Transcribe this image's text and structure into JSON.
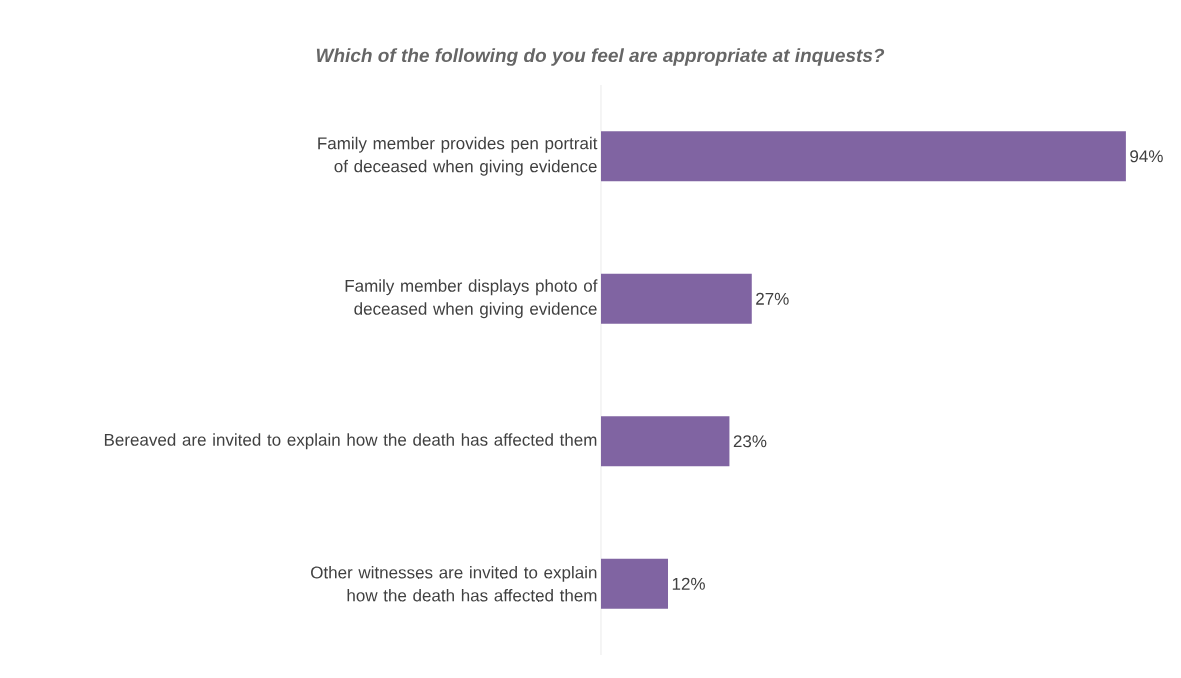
{
  "chart_data": {
    "type": "bar",
    "orientation": "horizontal",
    "title": "Which of the following do you feel are appropriate at inquests?",
    "categories": [
      "Family member provides pen portrait of deceased when giving evidence",
      "Family member displays photo of deceased when giving evidence",
      "Bereaved are invited to explain how the death has affected them",
      "Other witnesses are invited to explain how the death has affected them"
    ],
    "values": [
      94,
      27,
      23,
      12
    ],
    "value_labels": [
      "94%",
      "27%",
      "23%",
      "12%"
    ],
    "color": "#8064a2"
  }
}
